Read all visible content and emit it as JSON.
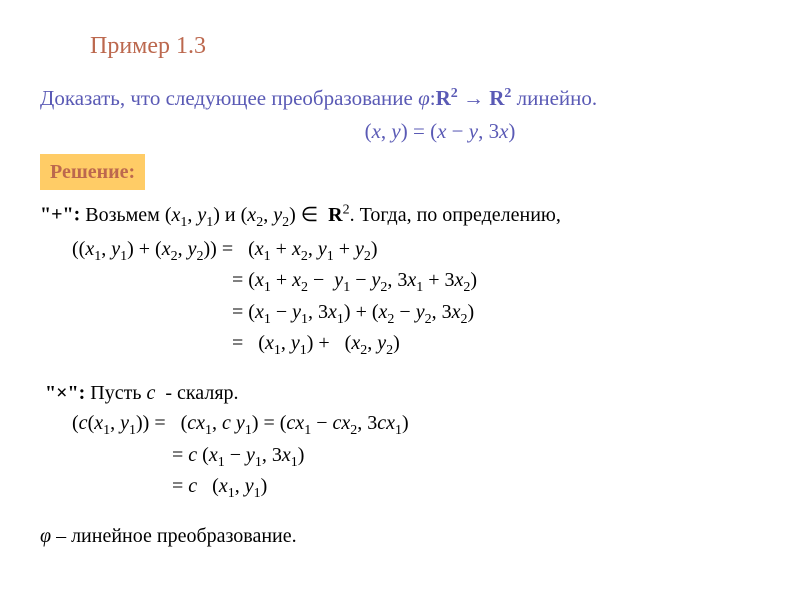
{
  "title": "Пример 1.3",
  "statement_part1": "Доказать, что следующее преобразование ",
  "phi": "φ",
  "statement_part2": ":",
  "R2": "R",
  "statement_part3": " → ",
  "statement_part4": " линейно.",
  "transform_lhs": "(",
  "x": "x",
  "y": "y",
  "c": "c",
  "transform_def": "(x, y) = (x − y, 3x)",
  "solution_label": "Решение:",
  "plus_label": "\"+\":",
  "plus_text1": " Возьмем (",
  "and": " и (",
  "in_text": ". Тогда, по определению,",
  "phi_line1_lhs": "((x",
  "comma_space": ", ",
  "plus_space": " + ",
  "eq_space": " = ",
  "plus_line1_rhs": "(x",
  "plus_line2": "= (x",
  "minus": " − ",
  "three": "3",
  "plus_line3": "= (x",
  "plus_line4_start": "=   (",
  "plus_line4_end": ")",
  "mult_label": "\"×\":",
  "mult_text1": " Пусть ",
  "mult_text2": "  - скаляр.",
  "mult_line1_lhs": "(c(x",
  "mult_line1_rhs": "(cx",
  "mult_line2": "= c (x",
  "mult_line3": "= c   (x",
  "conclusion": " – линейное преобразование.",
  "elem_symbol": "∈",
  "colors": {
    "title": "#bc684e",
    "statement": "#5a5ab5",
    "highlight_bg": "#ffcc66",
    "text": "#000000"
  },
  "fontsize_base": 20,
  "fontsize_title": 24
}
